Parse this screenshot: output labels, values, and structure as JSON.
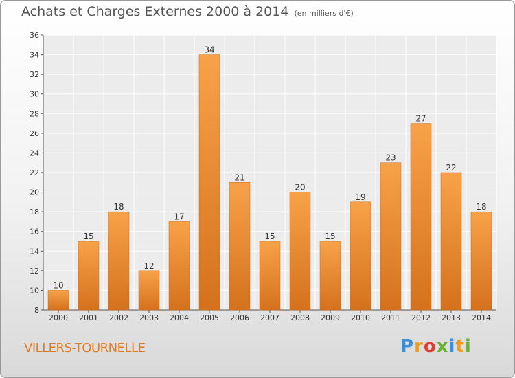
{
  "title": "Achats et Charges Externes 2000 à 2014",
  "subtitle": "(en milliers d'€)",
  "city": "VILLERS-TOURNELLE",
  "logo_text": "Proxiti",
  "chart_data": {
    "type": "bar",
    "categories": [
      "2000",
      "2001",
      "2002",
      "2003",
      "2004",
      "2005",
      "2006",
      "2007",
      "2008",
      "2009",
      "2010",
      "2011",
      "2012",
      "2013",
      "2014"
    ],
    "values": [
      10,
      15,
      18,
      12,
      17,
      34,
      21,
      15,
      20,
      15,
      19,
      23,
      27,
      22,
      18
    ],
    "ylim": [
      8,
      36
    ],
    "yticks": [
      8,
      10,
      12,
      14,
      16,
      18,
      20,
      22,
      24,
      26,
      28,
      30,
      32,
      34,
      36
    ],
    "grid": true,
    "colors": {
      "bar_light": "#f7a24a",
      "bar_dark": "#d5711c"
    }
  }
}
